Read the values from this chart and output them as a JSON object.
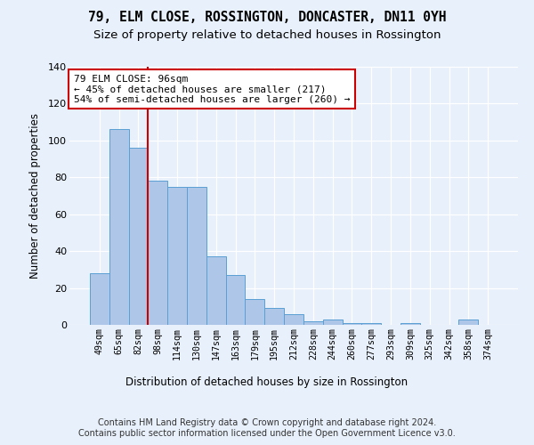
{
  "title": "79, ELM CLOSE, ROSSINGTON, DONCASTER, DN11 0YH",
  "subtitle": "Size of property relative to detached houses in Rossington",
  "xlabel": "Distribution of detached houses by size in Rossington",
  "ylabel": "Number of detached properties",
  "categories": [
    "49sqm",
    "65sqm",
    "82sqm",
    "98sqm",
    "114sqm",
    "130sqm",
    "147sqm",
    "163sqm",
    "179sqm",
    "195sqm",
    "212sqm",
    "228sqm",
    "244sqm",
    "260sqm",
    "277sqm",
    "293sqm",
    "309sqm",
    "325sqm",
    "342sqm",
    "358sqm",
    "374sqm"
  ],
  "values": [
    28,
    106,
    96,
    78,
    75,
    75,
    37,
    27,
    14,
    9,
    6,
    2,
    3,
    1,
    1,
    0,
    1,
    0,
    0,
    3,
    0
  ],
  "bar_color": "#aec6e8",
  "bar_edge_color": "#5a9fd4",
  "vline_pos": 2.5,
  "vline_color": "#cc0000",
  "annotation_text": "79 ELM CLOSE: 96sqm\n← 45% of detached houses are smaller (217)\n54% of semi-detached houses are larger (260) →",
  "annotation_box_color": "#ffffff",
  "annotation_box_edge_color": "#cc0000",
  "background_color": "#e8f0fb",
  "plot_bg_color": "#e8f0fb",
  "ylim": [
    0,
    140
  ],
  "yticks": [
    0,
    20,
    40,
    60,
    80,
    100,
    120,
    140
  ],
  "footer_line1": "Contains HM Land Registry data © Crown copyright and database right 2024.",
  "footer_line2": "Contains public sector information licensed under the Open Government Licence v3.0.",
  "title_fontsize": 10.5,
  "subtitle_fontsize": 9.5,
  "footer_fontsize": 7.0
}
